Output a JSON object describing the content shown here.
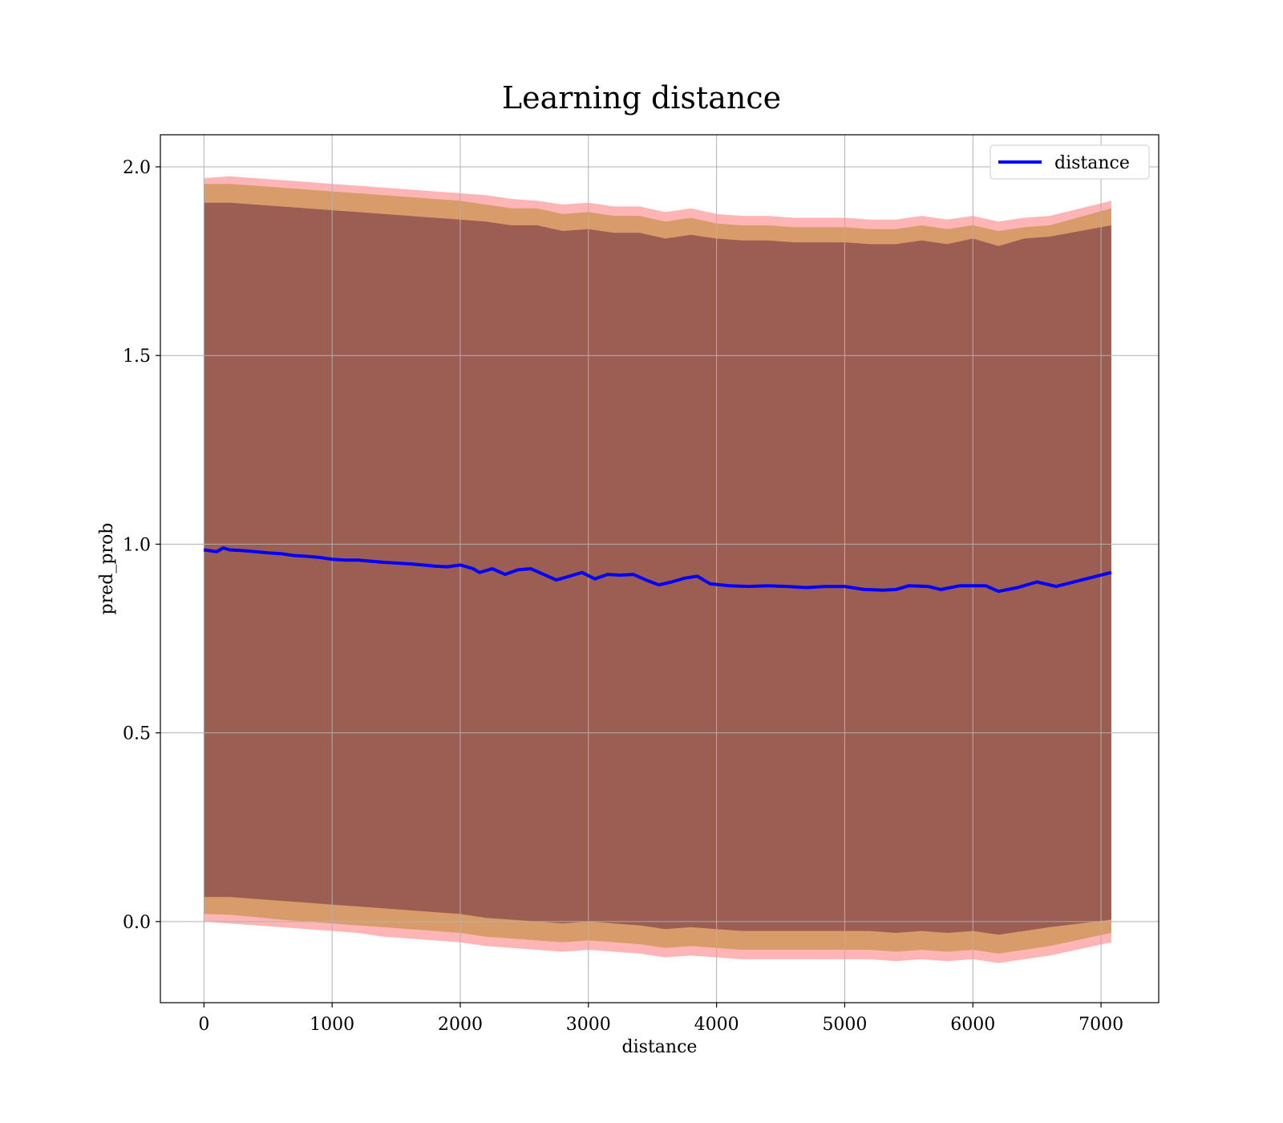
{
  "chart_data": {
    "type": "line",
    "title": "Learning distance",
    "xlabel": "distance",
    "ylabel": "pred_prob",
    "xlim": [
      -340,
      7450
    ],
    "ylim": [
      -0.215,
      2.085
    ],
    "x_ticks": [
      0,
      1000,
      2000,
      3000,
      4000,
      5000,
      6000,
      7000
    ],
    "x_tick_labels": [
      "0",
      "1000",
      "2000",
      "3000",
      "4000",
      "5000",
      "6000",
      "7000"
    ],
    "y_ticks": [
      0.0,
      0.5,
      1.0,
      1.5,
      2.0
    ],
    "y_tick_labels": [
      "0.0",
      "0.5",
      "1.0",
      "1.5",
      "2.0"
    ],
    "grid": true,
    "legend_position": "upper right",
    "colors": {
      "line": "#0000ff",
      "outer_band": "#ff6b6b",
      "mid_band": "#b8862b",
      "inner_band": "#6b2a3f",
      "grid": "#b0b0b0"
    },
    "series": [
      {
        "name": "distance",
        "x": [
          0,
          100,
          150,
          200,
          300,
          400,
          500,
          600,
          700,
          800,
          900,
          1000,
          1100,
          1200,
          1300,
          1400,
          1500,
          1600,
          1700,
          1800,
          1900,
          2000,
          2100,
          2150,
          2250,
          2350,
          2450,
          2550,
          2650,
          2750,
          2850,
          2950,
          3050,
          3150,
          3250,
          3350,
          3450,
          3550,
          3650,
          3750,
          3850,
          3950,
          4100,
          4250,
          4400,
          4550,
          4700,
          4850,
          5000,
          5150,
          5300,
          5400,
          5500,
          5650,
          5750,
          5900,
          6100,
          6200,
          6350,
          6500,
          6650,
          7080
        ],
        "y": [
          0.985,
          0.98,
          0.99,
          0.985,
          0.983,
          0.98,
          0.977,
          0.975,
          0.97,
          0.968,
          0.965,
          0.96,
          0.958,
          0.958,
          0.955,
          0.952,
          0.95,
          0.948,
          0.945,
          0.942,
          0.94,
          0.945,
          0.935,
          0.925,
          0.935,
          0.92,
          0.932,
          0.935,
          0.92,
          0.905,
          0.915,
          0.925,
          0.908,
          0.92,
          0.918,
          0.92,
          0.905,
          0.892,
          0.9,
          0.91,
          0.915,
          0.895,
          0.89,
          0.888,
          0.89,
          0.888,
          0.885,
          0.888,
          0.888,
          0.88,
          0.878,
          0.88,
          0.89,
          0.888,
          0.88,
          0.89,
          0.89,
          0.875,
          0.885,
          0.9,
          0.888,
          0.925
        ]
      }
    ],
    "bands": [
      {
        "role": "outer",
        "x": [
          0,
          200,
          400,
          600,
          800,
          1000,
          1200,
          1400,
          1600,
          1800,
          2000,
          2200,
          2400,
          2600,
          2800,
          3000,
          3200,
          3400,
          3600,
          3800,
          4000,
          4200,
          4400,
          4600,
          4800,
          5000,
          5200,
          5400,
          5600,
          5800,
          6000,
          6200,
          6400,
          6600,
          7080
        ],
        "upper": [
          1.97,
          1.975,
          1.97,
          1.965,
          1.96,
          1.955,
          1.95,
          1.945,
          1.94,
          1.935,
          1.93,
          1.925,
          1.915,
          1.91,
          1.9,
          1.905,
          1.895,
          1.895,
          1.88,
          1.89,
          1.875,
          1.87,
          1.87,
          1.865,
          1.865,
          1.865,
          1.86,
          1.86,
          1.87,
          1.86,
          1.87,
          1.855,
          1.865,
          1.87,
          1.91
        ],
        "lower": [
          0.0,
          -0.005,
          -0.01,
          -0.015,
          -0.02,
          -0.025,
          -0.03,
          -0.04,
          -0.045,
          -0.05,
          -0.055,
          -0.065,
          -0.07,
          -0.075,
          -0.08,
          -0.075,
          -0.08,
          -0.085,
          -0.095,
          -0.09,
          -0.095,
          -0.1,
          -0.1,
          -0.1,
          -0.1,
          -0.1,
          -0.1,
          -0.105,
          -0.1,
          -0.105,
          -0.1,
          -0.11,
          -0.1,
          -0.09,
          -0.055
        ]
      },
      {
        "role": "mid",
        "x": [
          0,
          200,
          400,
          600,
          800,
          1000,
          1200,
          1400,
          1600,
          1800,
          2000,
          2200,
          2400,
          2600,
          2800,
          3000,
          3200,
          3400,
          3600,
          3800,
          4000,
          4200,
          4400,
          4600,
          4800,
          5000,
          5200,
          5400,
          5600,
          5800,
          6000,
          6200,
          6400,
          6600,
          7080
        ],
        "upper": [
          1.955,
          1.955,
          1.95,
          1.945,
          1.94,
          1.935,
          1.93,
          1.925,
          1.92,
          1.915,
          1.91,
          1.9,
          1.89,
          1.89,
          1.875,
          1.88,
          1.87,
          1.87,
          1.855,
          1.865,
          1.85,
          1.845,
          1.845,
          1.84,
          1.84,
          1.84,
          1.835,
          1.835,
          1.845,
          1.835,
          1.845,
          1.83,
          1.84,
          1.845,
          1.89
        ],
        "lower": [
          0.02,
          0.018,
          0.012,
          0.005,
          0.0,
          -0.005,
          -0.01,
          -0.015,
          -0.02,
          -0.025,
          -0.03,
          -0.04,
          -0.045,
          -0.05,
          -0.055,
          -0.05,
          -0.055,
          -0.06,
          -0.07,
          -0.065,
          -0.07,
          -0.075,
          -0.075,
          -0.075,
          -0.075,
          -0.075,
          -0.075,
          -0.08,
          -0.075,
          -0.08,
          -0.075,
          -0.085,
          -0.075,
          -0.065,
          -0.03
        ]
      },
      {
        "role": "inner",
        "x": [
          0,
          200,
          400,
          600,
          800,
          1000,
          1200,
          1400,
          1600,
          1800,
          2000,
          2200,
          2400,
          2600,
          2800,
          3000,
          3200,
          3400,
          3600,
          3800,
          4000,
          4200,
          4400,
          4600,
          4800,
          5000,
          5200,
          5400,
          5600,
          5800,
          6000,
          6200,
          6400,
          6600,
          7080
        ],
        "upper": [
          1.905,
          1.905,
          1.9,
          1.895,
          1.89,
          1.885,
          1.88,
          1.875,
          1.87,
          1.865,
          1.86,
          1.855,
          1.845,
          1.845,
          1.83,
          1.835,
          1.825,
          1.825,
          1.81,
          1.82,
          1.81,
          1.805,
          1.805,
          1.8,
          1.8,
          1.8,
          1.795,
          1.795,
          1.805,
          1.795,
          1.81,
          1.79,
          1.81,
          1.815,
          1.845
        ],
        "lower": [
          0.065,
          0.065,
          0.06,
          0.055,
          0.05,
          0.045,
          0.04,
          0.035,
          0.03,
          0.025,
          0.02,
          0.01,
          0.005,
          0.0,
          -0.005,
          0.0,
          -0.005,
          -0.01,
          -0.02,
          -0.015,
          -0.02,
          -0.025,
          -0.025,
          -0.025,
          -0.025,
          -0.025,
          -0.025,
          -0.03,
          -0.025,
          -0.03,
          -0.025,
          -0.035,
          -0.025,
          -0.015,
          0.005
        ]
      }
    ]
  }
}
